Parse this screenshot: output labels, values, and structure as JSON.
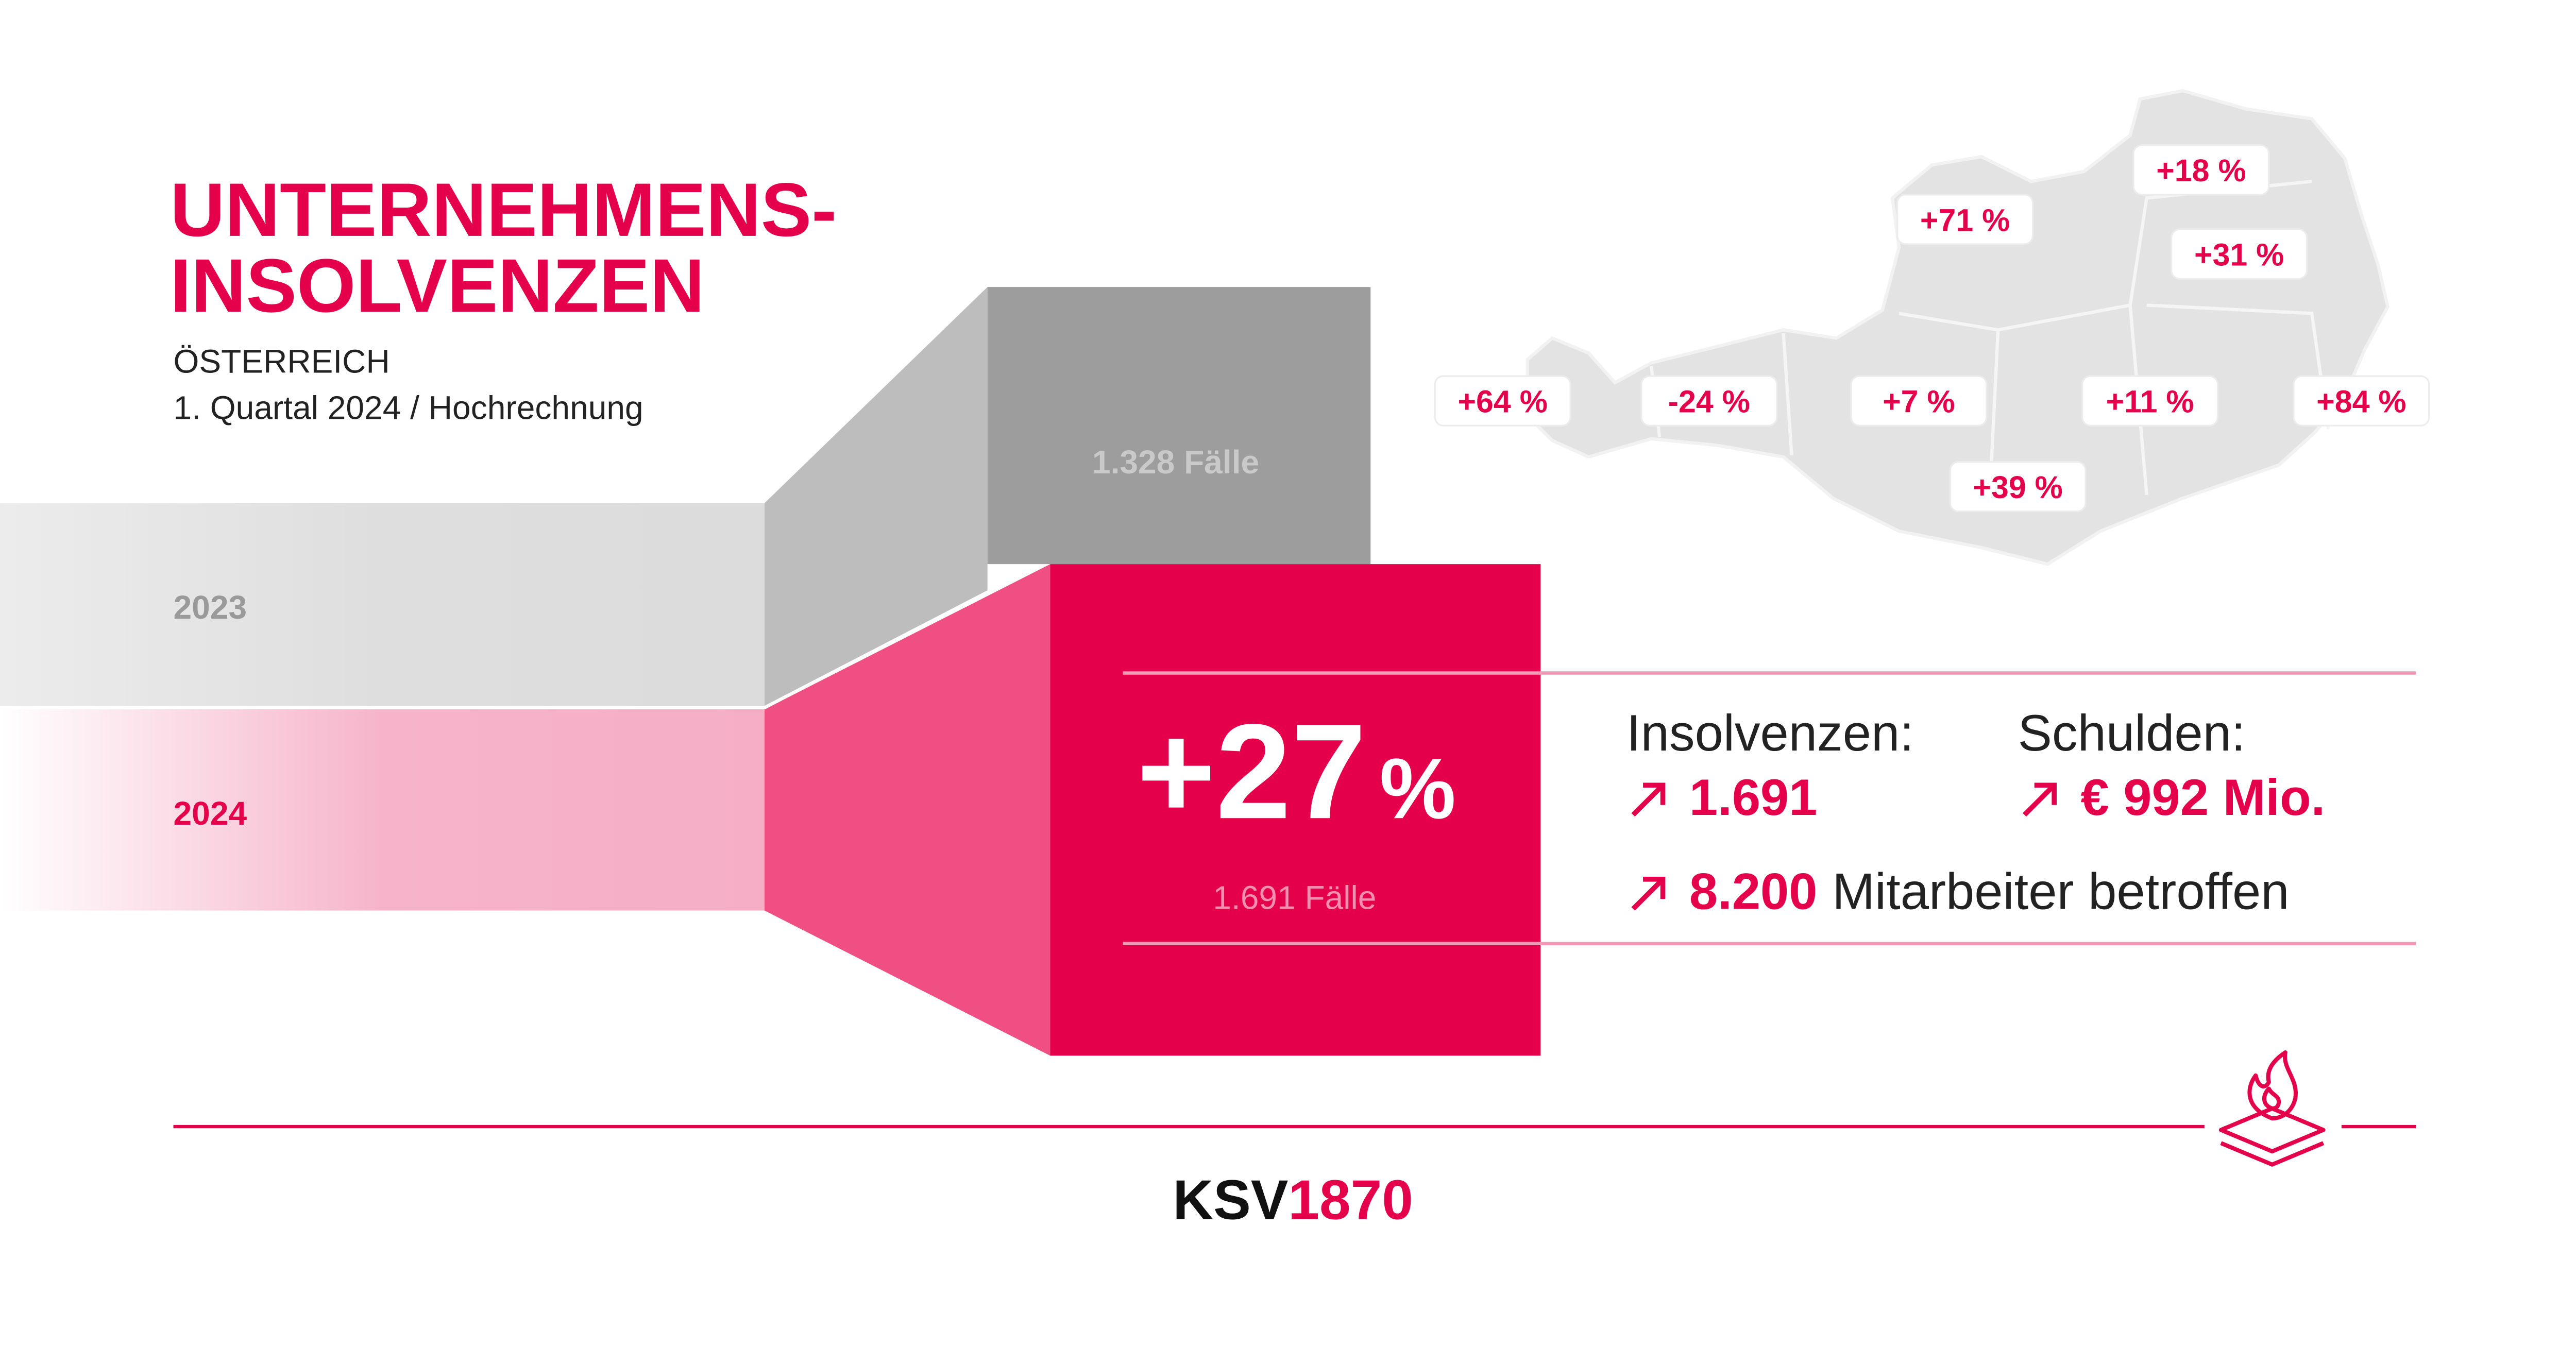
{
  "title": [
    "UNTERNEHMENS-",
    "INSOLVENZEN"
  ],
  "subtitle": [
    "ÖSTERREICH",
    "1. Quartal 2024 / Hochrechnung"
  ],
  "comparison": {
    "previous": {
      "year": "2023",
      "cases": "1.328 Fälle"
    },
    "current": {
      "year": "2024",
      "cases": "1.691 Fälle"
    },
    "change": {
      "value": "+27",
      "unit": "%"
    }
  },
  "stats": {
    "insolvenzen": {
      "label": "Insolvenzen:",
      "value": "1.691"
    },
    "schulden": {
      "label": "Schulden:",
      "value": "€ 992 Mio."
    },
    "mitarbeiter": {
      "value": "8.200",
      "label": "Mitarbeiter betroffen"
    }
  },
  "regions": [
    "+18 %",
    "+71 %",
    "+31 %",
    "+64 %",
    "-24 %",
    "+7 %",
    "+11 %",
    "+84 %",
    "+39 %"
  ],
  "logo": {
    "name": "KSV",
    "year": "1870"
  }
}
